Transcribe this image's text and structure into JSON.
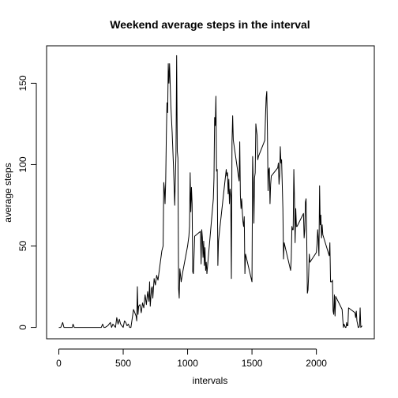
{
  "chart_data": {
    "type": "line",
    "title": "Weekend average steps in the interval",
    "xlabel": "intervals",
    "ylabel": "average steps",
    "xlim": [
      -95,
      2450
    ],
    "ylim": [
      -7,
      173
    ],
    "x_ticks": [
      0,
      500,
      1000,
      1500,
      2000
    ],
    "y_ticks": [
      0,
      50,
      100,
      150
    ],
    "grid": false,
    "legend": "none",
    "line_color": "#000000",
    "series": [
      {
        "x": [
          0,
          15,
          30,
          40,
          50,
          60,
          80,
          100,
          105,
          110,
          120,
          135,
          150,
          160,
          200,
          250,
          300,
          320,
          330,
          340,
          350,
          360,
          380,
          400,
          410,
          420,
          430,
          440,
          450,
          460,
          470,
          480,
          490,
          500,
          510,
          520,
          530,
          540,
          550,
          560,
          580,
          600,
          605,
          610,
          615,
          620,
          630,
          640,
          650,
          660,
          670,
          680,
          690,
          700,
          705,
          710,
          720,
          725,
          730,
          740,
          750,
          760,
          770,
          800,
          810,
          815,
          820,
          825,
          830,
          835,
          840,
          845,
          850,
          855,
          860,
          870,
          880,
          890,
          900,
          910,
          915,
          920,
          925,
          930,
          935,
          940,
          950,
          960,
          1000,
          1010,
          1015,
          1020,
          1025,
          1030,
          1035,
          1040,
          1045,
          1050,
          1055,
          1100,
          1105,
          1110,
          1115,
          1120,
          1125,
          1130,
          1135,
          1140,
          1145,
          1150,
          1200,
          1205,
          1210,
          1215,
          1220,
          1225,
          1230,
          1235,
          1240,
          1245,
          1300,
          1305,
          1310,
          1315,
          1320,
          1325,
          1330,
          1335,
          1340,
          1345,
          1350,
          1355,
          1400,
          1405,
          1410,
          1415,
          1420,
          1425,
          1430,
          1435,
          1440,
          1445,
          1450,
          1500,
          1505,
          1510,
          1515,
          1520,
          1525,
          1530,
          1535,
          1540,
          1545,
          1550,
          1600,
          1605,
          1610,
          1615,
          1620,
          1625,
          1630,
          1635,
          1640,
          1645,
          1650,
          1700,
          1705,
          1710,
          1715,
          1720,
          1725,
          1730,
          1735,
          1740,
          1745,
          1750,
          1800,
          1805,
          1810,
          1815,
          1820,
          1825,
          1830,
          1835,
          1840,
          1845,
          1850,
          1900,
          1905,
          1910,
          1915,
          1920,
          1925,
          1930,
          1935,
          1940,
          1945,
          1950,
          2000,
          2005,
          2010,
          2015,
          2020,
          2025,
          2030,
          2035,
          2040,
          2045,
          2050,
          2100,
          2105,
          2110,
          2115,
          2120,
          2125,
          2130,
          2135,
          2140,
          2145,
          2150,
          2200,
          2205,
          2210,
          2215,
          2220,
          2225,
          2230,
          2235,
          2240,
          2245,
          2250,
          2300,
          2305,
          2310,
          2315,
          2320,
          2325,
          2330,
          2335,
          2340,
          2345,
          2355
        ],
        "y": [
          0,
          0,
          3,
          0,
          0,
          0,
          0,
          0,
          0,
          2,
          0,
          0,
          0,
          0,
          0,
          0,
          0,
          0,
          0,
          2,
          0,
          0,
          1,
          3,
          0,
          2,
          1,
          0,
          6,
          2,
          5,
          2,
          1,
          0,
          4,
          3,
          1,
          2,
          0,
          0,
          11,
          7,
          4,
          25,
          8,
          13,
          14,
          9,
          15,
          12,
          20,
          14,
          22,
          16,
          28,
          13,
          24,
          25,
          18,
          30,
          26,
          32,
          29,
          47,
          50,
          89,
          85,
          76,
          90,
          118,
          138,
          132,
          162,
          150,
          162,
          136,
          120,
          100,
          75,
          108,
          167,
          108,
          104,
          24,
          18,
          36,
          28,
          33,
          50,
          56,
          62,
          95,
          71,
          86,
          76,
          34,
          33,
          44,
          56,
          59,
          39,
          60,
          55,
          43,
          53,
          38,
          49,
          35,
          40,
          33,
          79,
          92,
          129,
          124,
          142,
          96,
          97,
          38,
          53,
          57,
          97,
          93,
          95,
          82,
          91,
          76,
          85,
          81,
          30,
          114,
          130,
          115,
          90,
          114,
          81,
          73,
          79,
          71,
          65,
          62,
          68,
          33,
          45,
          28,
          105,
          89,
          64,
          92,
          95,
          125,
          121,
          118,
          103,
          105,
          115,
          130,
          141,
          145,
          120,
          84,
          97,
          98,
          76,
          88,
          93,
          98,
          101,
          88,
          94,
          111,
          101,
          103,
          88,
          73,
          42,
          52,
          35,
          42,
          62,
          60,
          60,
          97,
          79,
          52,
          73,
          62,
          62,
          70,
          55,
          60,
          77,
          79,
          56,
          21,
          23,
          32,
          45,
          40,
          46,
          51,
          60,
          54,
          44,
          87,
          63,
          69,
          55,
          63,
          57,
          44,
          52,
          28,
          28,
          28,
          29,
          10,
          8,
          20,
          7,
          19,
          11,
          5,
          0,
          2,
          1,
          0,
          0,
          3,
          1,
          1,
          12,
          9,
          6,
          10,
          4,
          2,
          0,
          0,
          1,
          12,
          0,
          1
        ]
      }
    ]
  }
}
